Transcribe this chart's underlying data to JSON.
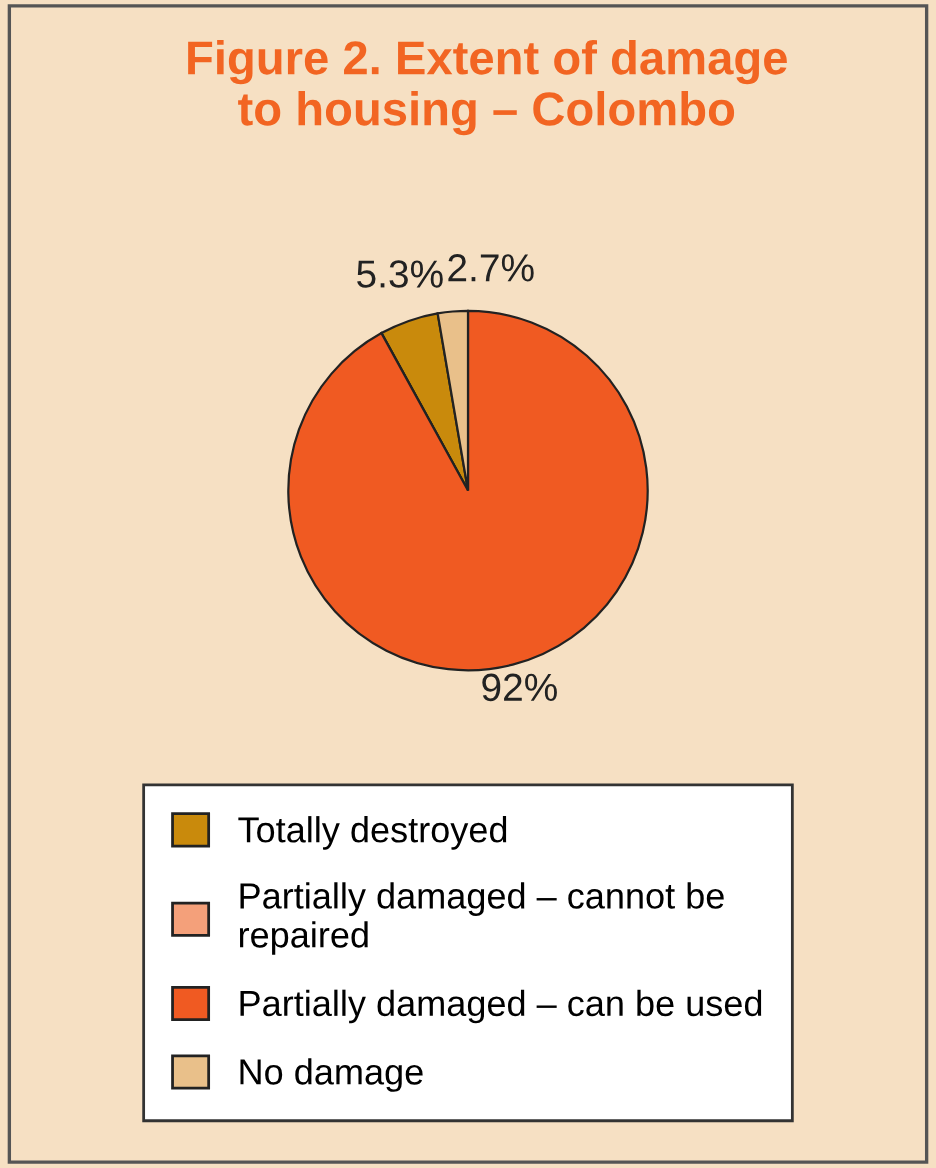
{
  "chart_data": {
    "type": "pie",
    "title": "Figure 2. Extent of damage\nto housing – Colombo",
    "categories": [
      "Totally destroyed",
      "Partially damaged – cannot be\nrepaired",
      "Partially damaged – can be used",
      "No damage"
    ],
    "values": [
      5.3,
      0,
      92,
      2.7
    ],
    "colors": [
      "#c98a0c",
      "#f4a07a",
      "#f05a22",
      "#e9c08a"
    ],
    "value_labels": [
      "5.3%",
      null,
      "92%",
      "2.7%"
    ],
    "legend": "bottom"
  }
}
